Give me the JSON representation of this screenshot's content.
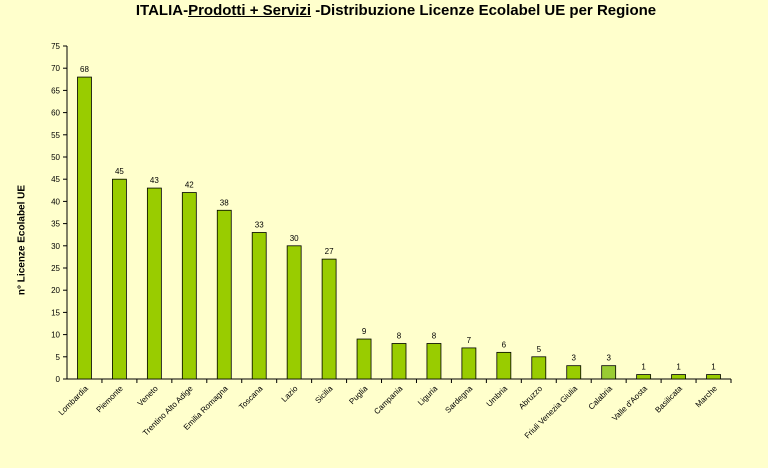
{
  "title_part1": "ITALIA-",
  "title_part2": "Prodotti + Servizi",
  "title_part3": " -Distribuzione Licenze Ecolabel UE per Regione",
  "colors": {
    "bar": "#99cc00",
    "bar_light": "#99cc33",
    "background": "#ffffcc"
  },
  "chart_data": {
    "type": "bar",
    "title": "ITALIA-Prodotti + Servizi -Distribuzione Licenze Ecolabel UE per Regione",
    "xlabel": "",
    "ylabel": "n° Licenze  Ecolabel  UE",
    "ylim": [
      0,
      75
    ],
    "yticks": [
      0,
      5,
      10,
      15,
      20,
      25,
      30,
      35,
      40,
      45,
      50,
      55,
      60,
      65,
      70,
      75
    ],
    "grid": false,
    "legend": "none",
    "data_labels": true,
    "categories": [
      "Lombardia",
      "Piemonte",
      "Veneto",
      "Trentino Alto Adige",
      "Emilia Romagna",
      "Toscana",
      "Lazio",
      "Sicilia",
      "Puglia",
      "Campania",
      "Liguria",
      "Sardegna",
      "Umbria",
      "Abruzzo",
      "Friuli Venezia Giulia",
      "Calabria",
      "Valle d'Aosta",
      "Basilicata",
      "Marche"
    ],
    "values": [
      68,
      45,
      43,
      42,
      38,
      33,
      30,
      27,
      9,
      8,
      8,
      7,
      6,
      5,
      3,
      3,
      1,
      1,
      1
    ]
  }
}
